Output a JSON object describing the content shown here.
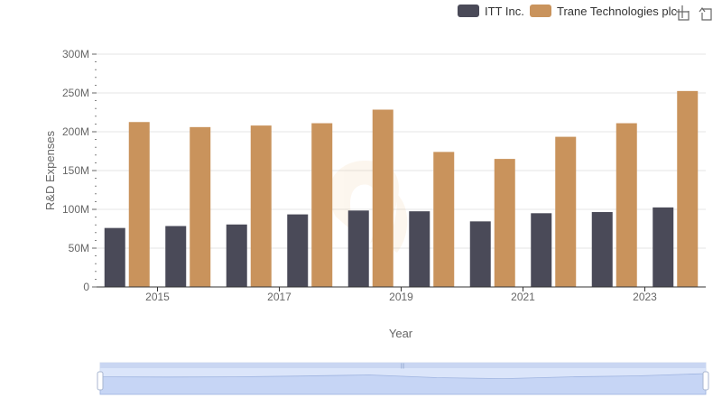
{
  "toolbar": {
    "icons": [
      "zoom-select-icon",
      "zoom-reset-icon"
    ]
  },
  "chart_data": {
    "type": "bar",
    "categories": [
      "2014",
      "2015",
      "2016",
      "2017",
      "2018",
      "2019",
      "2020",
      "2021",
      "2022",
      "2023"
    ],
    "x_tick_labels": [
      "2015",
      "2017",
      "2019",
      "2021",
      "2023"
    ],
    "series": [
      {
        "name": "ITT Inc.",
        "color": "#4a4a58",
        "values": [
          76000000,
          78500000,
          80500000,
          93500000,
          98500000,
          97500000,
          84500000,
          95000000,
          96500000,
          102500000
        ]
      },
      {
        "name": "Trane Technologies plc",
        "color": "#c9935c",
        "values": [
          212500000,
          206000000,
          208000000,
          211000000,
          228500000,
          174000000,
          165000000,
          193500000,
          211000000,
          252500000
        ]
      }
    ],
    "ylim": [
      0,
      300000000
    ],
    "y_ticks": [
      0,
      50000000,
      100000000,
      150000000,
      200000000,
      250000000,
      300000000
    ],
    "y_tick_labels": [
      "0",
      "50M",
      "100M",
      "150M",
      "200M",
      "250M",
      "300M"
    ],
    "xlabel": "Year",
    "ylabel": "R&D Expenses",
    "legend_position": "top-right",
    "grid": true
  }
}
